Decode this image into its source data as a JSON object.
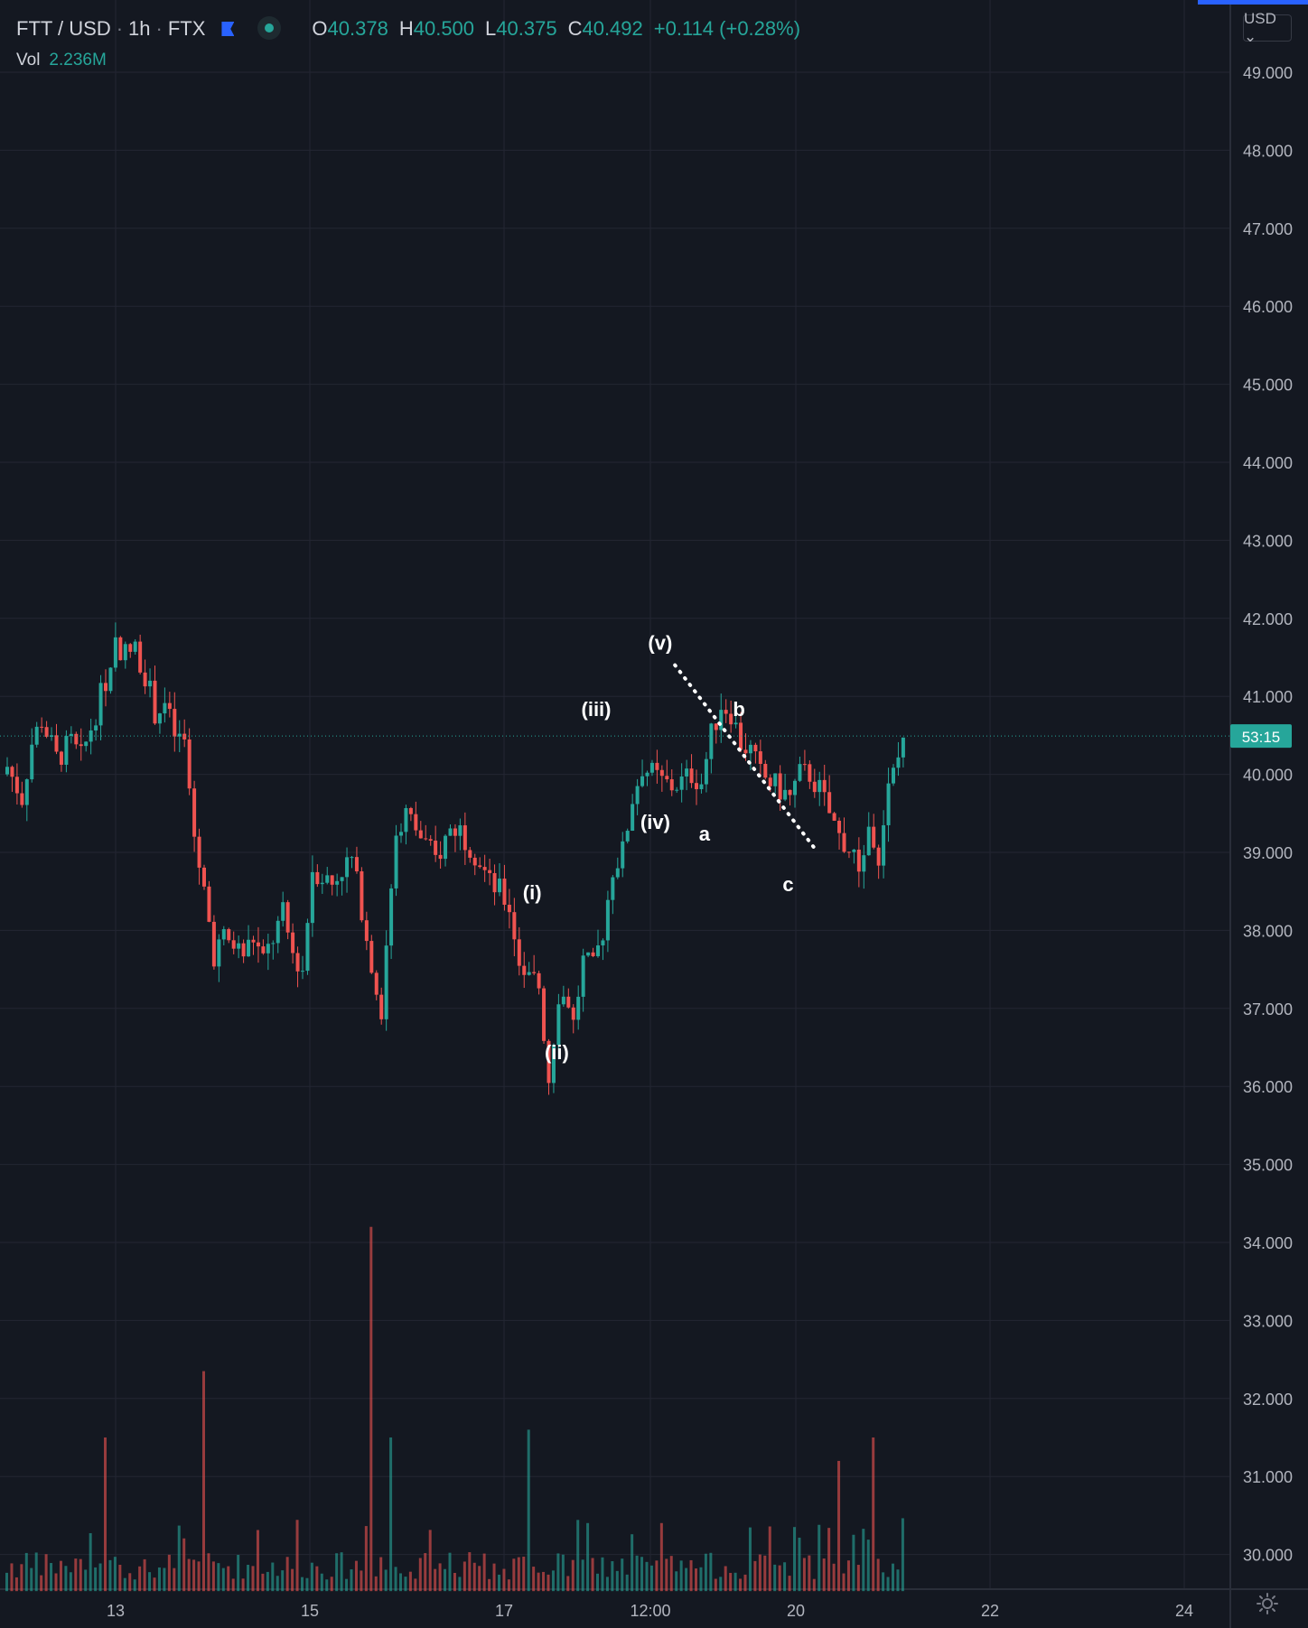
{
  "header": {
    "symbol": "FTT / USD",
    "interval": "1h",
    "exchange": "FTX",
    "ohlc": [
      {
        "k": "O",
        "v": "40.378"
      },
      {
        "k": "H",
        "v": "40.500"
      },
      {
        "k": "L",
        "v": "40.375"
      },
      {
        "k": "C",
        "v": "40.492"
      }
    ],
    "change": "+0.114 (+0.28%)",
    "volume_label": "Vol",
    "volume_value": "2.236M",
    "currency_button": "USD ⌄"
  },
  "colors": {
    "background": "#141821",
    "up": "#26a69a",
    "down": "#ef5350",
    "grid": "#232632",
    "axis_text": "#b2b5be",
    "price_badge": "#26a69a",
    "annotation": "#ffffff"
  },
  "chart_data": {
    "type": "candlestick",
    "title": "",
    "y_axis": {
      "ticks": [
        "49.000",
        "48.000",
        "47.000",
        "46.000",
        "45.000",
        "44.000",
        "43.000",
        "42.000",
        "41.000",
        "40.000",
        "39.000",
        "38.000",
        "37.000",
        "36.000",
        "35.000",
        "34.000",
        "33.000",
        "32.000",
        "31.000",
        "30.000"
      ],
      "range": [
        29.6,
        49.5
      ]
    },
    "x_axis": {
      "ticks": [
        "13",
        "15",
        "17",
        "12:00",
        "20",
        "22",
        "24"
      ]
    },
    "current_price": 40.492,
    "countdown_label": "53:15",
    "price_path": [
      [
        40.1,
        0
      ],
      [
        39.7,
        3
      ],
      [
        40.4,
        5
      ],
      [
        40.7,
        7
      ],
      [
        40.2,
        10
      ],
      [
        40.4,
        13
      ],
      [
        40.2,
        15
      ],
      [
        40.6,
        17
      ],
      [
        41.2,
        20
      ],
      [
        41.7,
        22
      ],
      [
        41.55,
        24
      ],
      [
        41.6,
        26
      ],
      [
        41.3,
        28
      ],
      [
        40.8,
        30
      ],
      [
        40.9,
        32
      ],
      [
        40.5,
        34
      ],
      [
        40.4,
        36
      ],
      [
        39.2,
        38
      ],
      [
        38.5,
        40
      ],
      [
        37.7,
        42
      ],
      [
        37.9,
        44
      ],
      [
        37.8,
        46
      ],
      [
        37.7,
        48
      ],
      [
        37.9,
        50
      ],
      [
        37.6,
        52
      ],
      [
        37.9,
        54
      ],
      [
        38.2,
        56
      ],
      [
        37.7,
        58
      ],
      [
        37.5,
        60
      ],
      [
        38.8,
        62
      ],
      [
        38.7,
        64
      ],
      [
        38.6,
        66
      ],
      [
        38.8,
        68
      ],
      [
        38.9,
        70
      ],
      [
        38.3,
        72
      ],
      [
        37.6,
        74
      ],
      [
        37.0,
        76
      ],
      [
        37.8,
        77
      ],
      [
        39.3,
        79
      ],
      [
        39.5,
        81
      ],
      [
        39.3,
        83
      ],
      [
        39.1,
        85
      ],
      [
        38.9,
        87
      ],
      [
        39.3,
        90
      ],
      [
        39.3,
        92
      ],
      [
        39.1,
        94
      ],
      [
        38.9,
        96
      ],
      [
        38.6,
        98
      ],
      [
        38.5,
        100
      ],
      [
        38.3,
        102
      ],
      [
        37.6,
        104
      ],
      [
        37.4,
        106
      ],
      [
        37.3,
        108
      ],
      [
        36.1,
        110
      ],
      [
        37.2,
        112
      ],
      [
        37.1,
        114
      ],
      [
        36.8,
        115
      ],
      [
        37.6,
        117
      ],
      [
        37.5,
        119
      ],
      [
        38.0,
        121
      ],
      [
        38.8,
        123
      ],
      [
        39.0,
        125
      ],
      [
        39.7,
        127
      ],
      [
        40.1,
        129
      ],
      [
        40.0,
        131
      ],
      [
        39.9,
        133
      ],
      [
        39.85,
        135
      ],
      [
        39.9,
        137
      ],
      [
        40.0,
        139
      ],
      [
        39.9,
        141
      ],
      [
        40.5,
        143
      ],
      [
        40.9,
        145
      ],
      [
        40.8,
        147
      ],
      [
        40.4,
        149
      ],
      [
        40.3,
        151
      ],
      [
        40.0,
        153
      ],
      [
        39.9,
        155
      ],
      [
        39.8,
        157
      ],
      [
        39.7,
        159
      ],
      [
        40.0,
        161
      ],
      [
        40.0,
        163
      ],
      [
        39.8,
        165
      ],
      [
        39.5,
        167
      ],
      [
        39.2,
        169
      ],
      [
        39.0,
        171
      ],
      [
        38.8,
        173
      ],
      [
        39.3,
        175
      ],
      [
        39.0,
        177
      ],
      [
        39.8,
        179
      ],
      [
        40.2,
        181
      ],
      [
        40.5,
        182
      ]
    ],
    "volume_spikes": [
      [
        20,
        1.9
      ],
      [
        40,
        2.75
      ],
      [
        74,
        4.6
      ],
      [
        78,
        1.9
      ],
      [
        106,
        2.0
      ],
      [
        169,
        1.6
      ],
      [
        176,
        1.9
      ]
    ],
    "annotations": [
      {
        "label": "(i)"
      },
      {
        "label": "(ii)"
      },
      {
        "label": "(iii)"
      },
      {
        "label": "(iv)"
      },
      {
        "label": "(v)"
      },
      {
        "label": "a"
      },
      {
        "label": "b"
      },
      {
        "label": "c"
      }
    ],
    "annotation_points": [
      [
        38.4,
        107
      ],
      [
        36.35,
        112
      ],
      [
        40.75,
        120
      ],
      [
        39.3,
        132
      ],
      [
        41.6,
        133
      ],
      [
        39.15,
        142
      ],
      [
        40.75,
        149
      ],
      [
        38.5,
        159
      ]
    ],
    "trendline": {
      "style": "dotted",
      "from": [
        41.4,
        136
      ],
      "to": [
        39.0,
        165
      ]
    }
  }
}
